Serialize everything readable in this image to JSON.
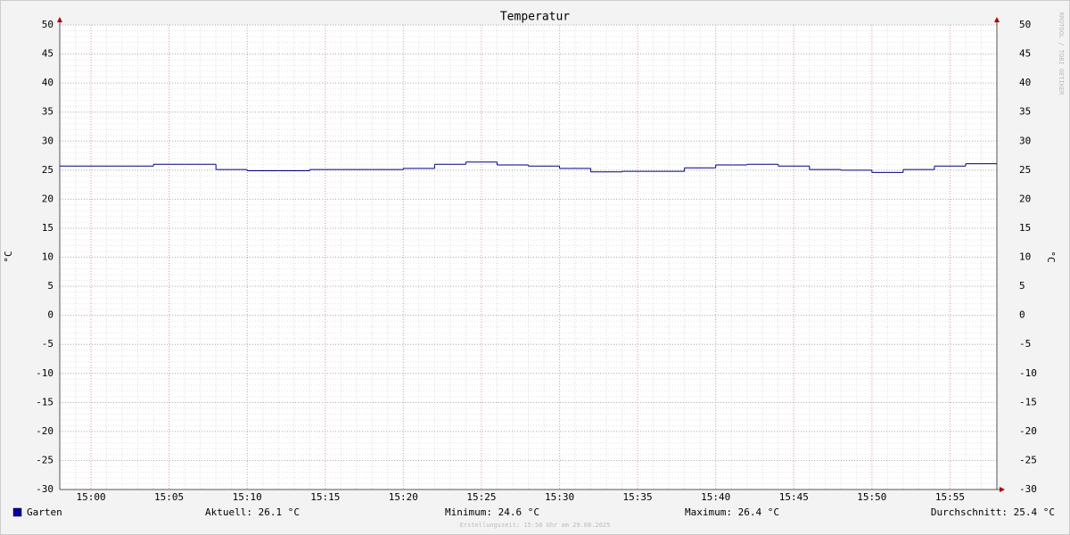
{
  "chart_data": {
    "type": "step",
    "title": "Temperatur",
    "y_label": "°C",
    "x": [
      "14:58",
      "15:00",
      "15:02",
      "15:04",
      "15:06",
      "15:08",
      "15:10",
      "15:12",
      "15:14",
      "15:16",
      "15:18",
      "15:20",
      "15:22",
      "15:24",
      "15:26",
      "15:28",
      "15:30",
      "15:32",
      "15:34",
      "15:36",
      "15:38",
      "15:40",
      "15:42",
      "15:44",
      "15:46",
      "15:48",
      "15:50",
      "15:52",
      "15:54",
      "15:56"
    ],
    "series": [
      {
        "name": "Garten",
        "color": "#000080",
        "legend_color": "#0000a0",
        "values": [
          25.7,
          25.7,
          25.7,
          26.0,
          26.0,
          25.1,
          24.9,
          24.9,
          25.1,
          25.1,
          25.1,
          25.3,
          26.0,
          26.4,
          25.9,
          25.7,
          25.3,
          24.7,
          24.8,
          24.8,
          25.4,
          25.9,
          26.0,
          25.7,
          25.1,
          25.0,
          24.6,
          25.1,
          25.7,
          26.1
        ]
      }
    ],
    "xlim": [
      "14:58",
      "15:58"
    ],
    "xticks": [
      "15:00",
      "15:05",
      "15:10",
      "15:15",
      "15:20",
      "15:25",
      "15:30",
      "15:35",
      "15:40",
      "15:45",
      "15:50",
      "15:55"
    ],
    "ylim": [
      -30,
      50
    ],
    "yticks": [
      -30,
      -25,
      -20,
      -15,
      -10,
      -5,
      0,
      5,
      10,
      15,
      20,
      25,
      30,
      35,
      40,
      45,
      50
    ],
    "grid": true,
    "stats": [
      "Aktuell: 26.1 °C",
      "Minimum: 24.6 °C",
      "Maximum: 26.4 °C",
      "Durchschnitt: 25.4 °C"
    ],
    "footer": "Erstellungszeit: 15:58 Uhr am 29.08.2025",
    "watermark": "RRDTOOL / TOBI OETIKER"
  }
}
